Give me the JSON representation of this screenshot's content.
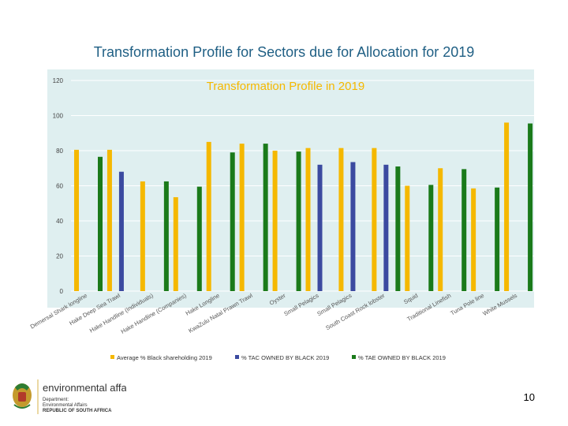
{
  "slide": {
    "title": "Transformation Profile for Sectors due for Allocation for 2019",
    "page_number": "10"
  },
  "logo": {
    "org_name": "environmental affairs",
    "dept_line1": "Department:",
    "dept_line2": "Environmental Affairs",
    "country": "REPUBLIC OF SOUTH AFRICA"
  },
  "chart_data": {
    "type": "bar",
    "title": "Transformation Profile in 2019",
    "ylim": [
      0,
      120
    ],
    "yticks": [
      0,
      20,
      40,
      60,
      80,
      100,
      120
    ],
    "grid": true,
    "legend_position": "bottom",
    "categories": [
      "Demersal Shark longline",
      "Hake Deep Sea Trawl",
      "Hake Handline (Individuals)",
      "Hake Handline (Companies)",
      "Hake Longline",
      "KwaZulu Natal Prawn Trawl",
      "Oyster",
      "Small Pelagics",
      "Small Pelagics",
      "South Coast Rock lobster",
      "Squid",
      "Traditional Linefish",
      "Tuna Pole line",
      "White Mussels"
    ],
    "series": [
      {
        "name": "Average % Black shareholding 2019",
        "color": "#f5b800",
        "values": [
          80.5,
          80.5,
          62.5,
          53.5,
          85,
          84,
          80,
          81.5,
          81.5,
          81.5,
          60,
          70,
          58.5,
          96
        ]
      },
      {
        "name": "% TAC OWNED BY BLACK 2019",
        "color": "#3b4aa0",
        "values": [
          null,
          68,
          null,
          null,
          null,
          null,
          null,
          72,
          73.5,
          72,
          null,
          null,
          null,
          null
        ]
      },
      {
        "name": "% TAE OWNED BY BLACK 2019",
        "color": "#1a7a1a",
        "values": [
          76.5,
          null,
          62.5,
          59.5,
          79,
          84,
          79.5,
          null,
          null,
          71,
          60.5,
          69.5,
          59,
          95.5
        ]
      }
    ]
  }
}
